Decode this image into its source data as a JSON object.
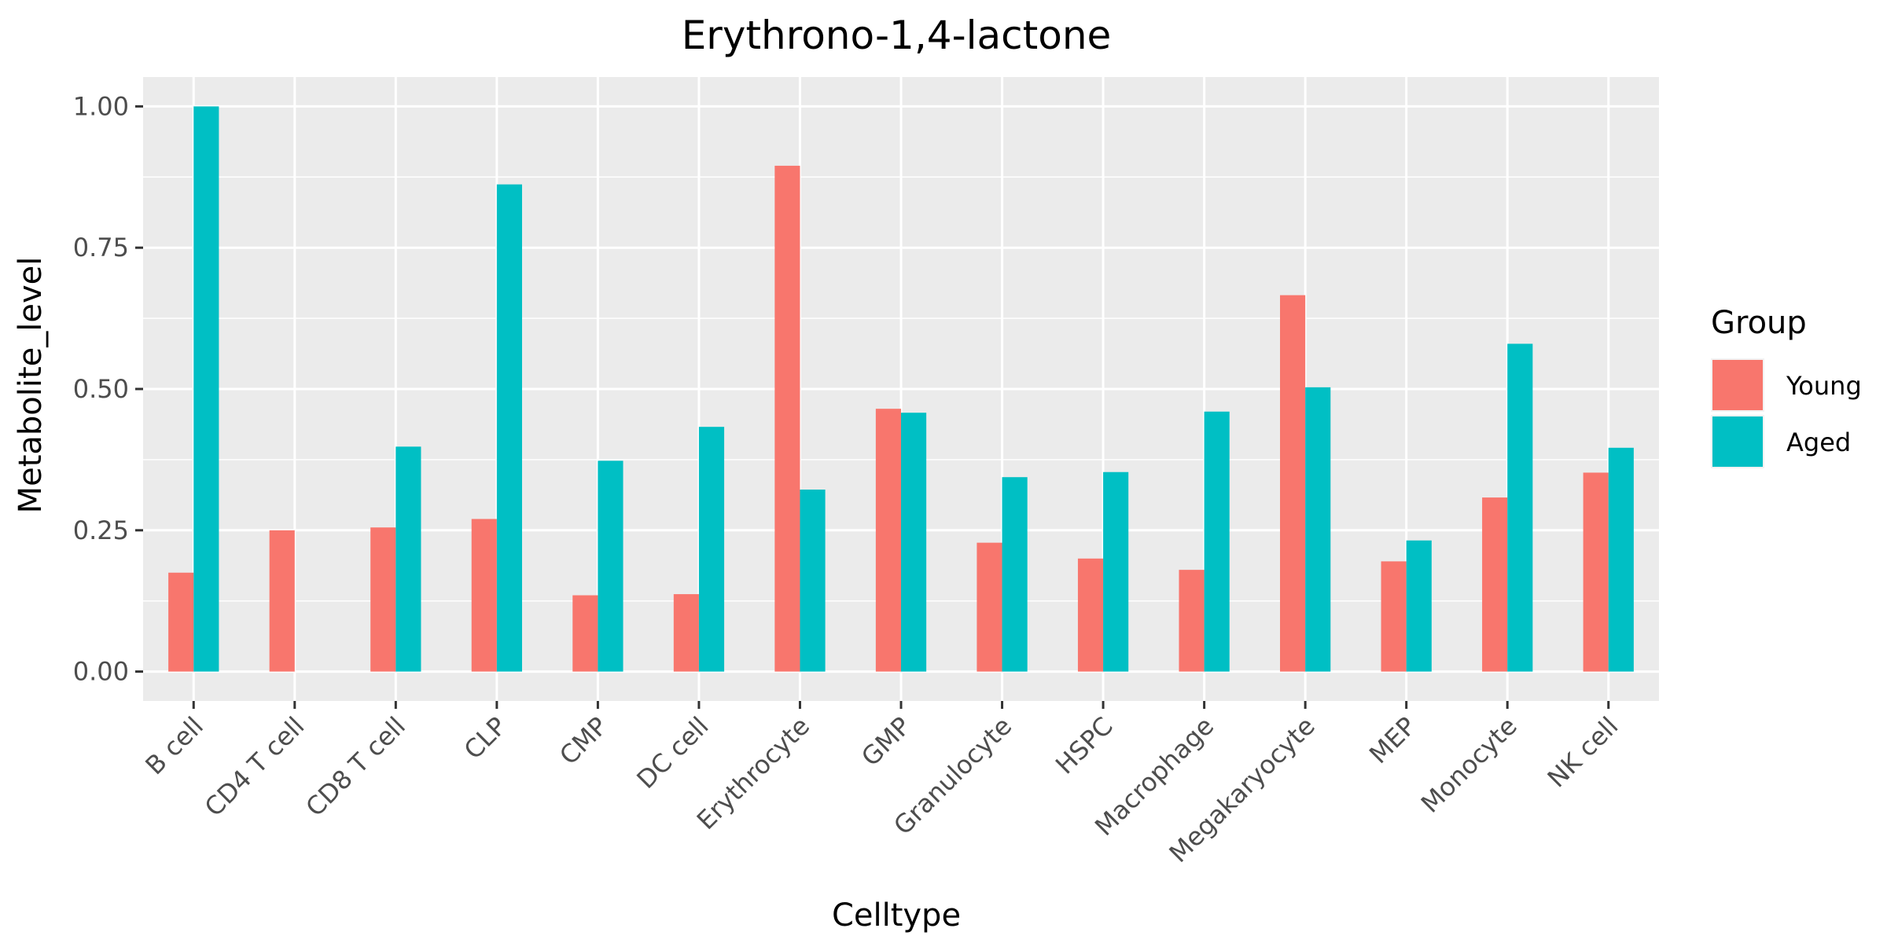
{
  "chart_data": {
    "type": "bar",
    "title": "Erythrono-1,4-lactone",
    "xlabel": "Celltype",
    "ylabel": "Metabolite_level",
    "categories": [
      "B cell",
      "CD4 T cell",
      "CD8 T cell",
      "CLP",
      "CMP",
      "DC cell",
      "Erythrocyte",
      "GMP",
      "Granulocyte",
      "HSPC",
      "Macrophage",
      "Megakaryocyte",
      "MEP",
      "Monocyte",
      "NK cell"
    ],
    "series": [
      {
        "name": "Young",
        "color": "#F8766D",
        "values": [
          0.175,
          0.25,
          0.255,
          0.27,
          0.135,
          0.137,
          0.895,
          0.465,
          0.228,
          0.2,
          0.18,
          0.666,
          0.195,
          0.308,
          0.352
        ]
      },
      {
        "name": "Aged",
        "color": "#00BFC4",
        "values": [
          1.0,
          null,
          0.398,
          0.862,
          0.373,
          0.433,
          0.322,
          0.458,
          0.344,
          0.353,
          0.46,
          0.503,
          0.232,
          0.58,
          0.396
        ]
      }
    ],
    "ylim": [
      -0.052,
      1.052
    ],
    "yticks": [
      0.0,
      0.25,
      0.5,
      0.75,
      1.0
    ],
    "ytick_labels": [
      "0.00",
      "0.25",
      "0.50",
      "0.75",
      "1.00"
    ],
    "legend": {
      "title": "Group",
      "position": "right"
    },
    "grid": true,
    "panel_background": "#EBEBEB",
    "grid_color": "#FFFFFF"
  }
}
